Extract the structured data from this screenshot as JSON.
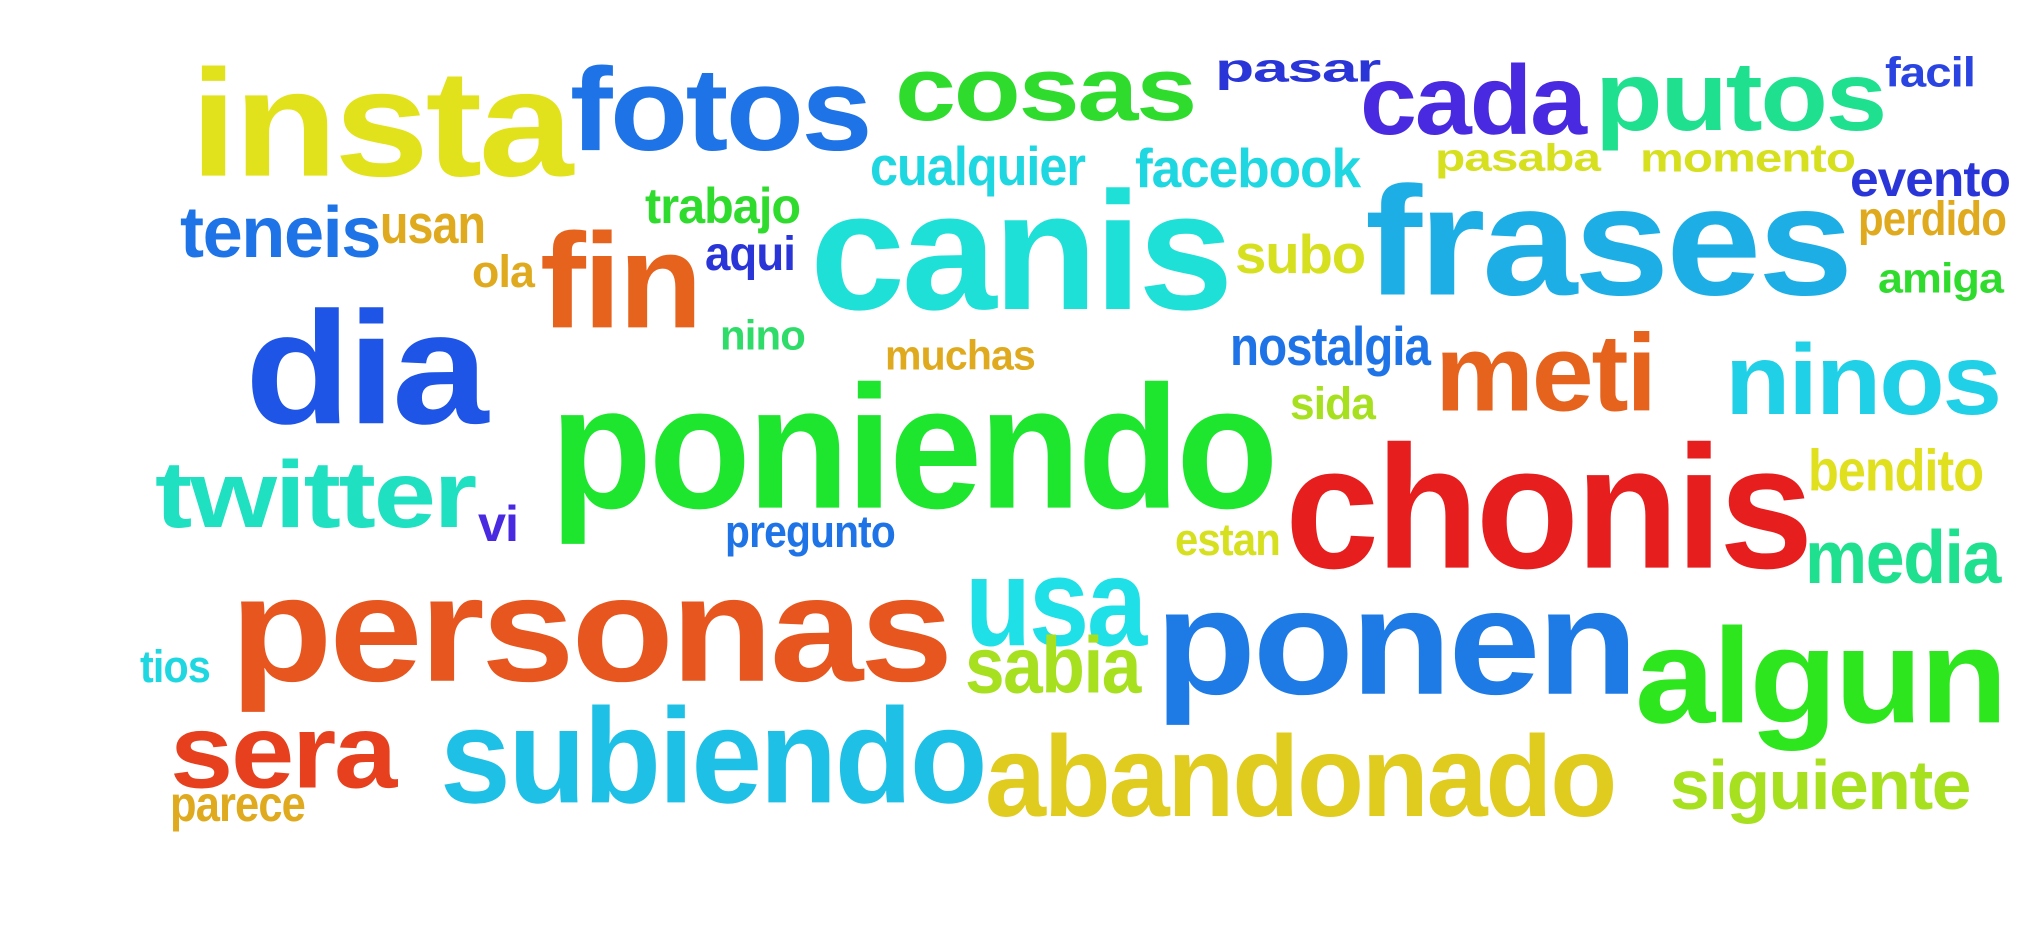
{
  "words": [
    {
      "text": "insta",
      "color": "#e2e21c"
    },
    {
      "text": "fotos",
      "color": "#1e73e6"
    },
    {
      "text": "cosas",
      "color": "#2fdc2d"
    },
    {
      "text": "pasar",
      "color": "#2a35d8"
    },
    {
      "text": "cada",
      "color": "#4a2ae0"
    },
    {
      "text": "putos",
      "color": "#1fe08f"
    },
    {
      "text": "facil",
      "color": "#2a44e2"
    },
    {
      "text": "cualquier",
      "color": "#1fd7e0"
    },
    {
      "text": "facebook",
      "color": "#1fd7e0"
    },
    {
      "text": "pasaba",
      "color": "#d6e01f"
    },
    {
      "text": "momento",
      "color": "#d6e01f"
    },
    {
      "text": "evento",
      "color": "#2a35d8"
    },
    {
      "text": "teneis",
      "color": "#1e73e6"
    },
    {
      "text": "usan",
      "color": "#e0aa1f"
    },
    {
      "text": "trabajo",
      "color": "#2fdc2d"
    },
    {
      "text": "canis",
      "color": "#1fe0d7"
    },
    {
      "text": "frases",
      "color": "#1eaee6"
    },
    {
      "text": "perdido",
      "color": "#e0aa1f"
    },
    {
      "text": "ola",
      "color": "#e0aa1f"
    },
    {
      "text": "fin",
      "color": "#e6631e"
    },
    {
      "text": "aqui",
      "color": "#2a35d8"
    },
    {
      "text": "subo",
      "color": "#d6e01f"
    },
    {
      "text": "amiga",
      "color": "#2fdc2d"
    },
    {
      "text": "dia",
      "color": "#1e55e6"
    },
    {
      "text": "nino",
      "color": "#2fdc6a"
    },
    {
      "text": "muchas",
      "color": "#e0aa1f"
    },
    {
      "text": "nostalgia",
      "color": "#1e73e6"
    },
    {
      "text": "meti",
      "color": "#e6631e"
    },
    {
      "text": "ninos",
      "color": "#1fd0e6"
    },
    {
      "text": "poniendo",
      "color": "#1ee62f"
    },
    {
      "text": "sida",
      "color": "#a6e01f"
    },
    {
      "text": "twitter",
      "color": "#1fe0c0"
    },
    {
      "text": "chonis",
      "color": "#e61e1e"
    },
    {
      "text": "bendito",
      "color": "#e0e01f"
    },
    {
      "text": "vi",
      "color": "#4a2ae0"
    },
    {
      "text": "pregunto",
      "color": "#1e73e6"
    },
    {
      "text": "estan",
      "color": "#d6e01f"
    },
    {
      "text": "media",
      "color": "#1fe08f"
    },
    {
      "text": "personas",
      "color": "#e6561e"
    },
    {
      "text": "usa",
      "color": "#1fe0e6"
    },
    {
      "text": "ponen",
      "color": "#1e7be6"
    },
    {
      "text": "tios",
      "color": "#1fd7e0"
    },
    {
      "text": "sabia",
      "color": "#a6e01f"
    },
    {
      "text": "algun",
      "color": "#2ee61e"
    },
    {
      "text": "sera",
      "color": "#e6401e"
    },
    {
      "text": "subiendo",
      "color": "#1fc0e6"
    },
    {
      "text": "abandonado",
      "color": "#e0cc1f"
    },
    {
      "text": "siguiente",
      "color": "#a6e01f"
    },
    {
      "text": "parece",
      "color": "#e0aa1f"
    }
  ]
}
